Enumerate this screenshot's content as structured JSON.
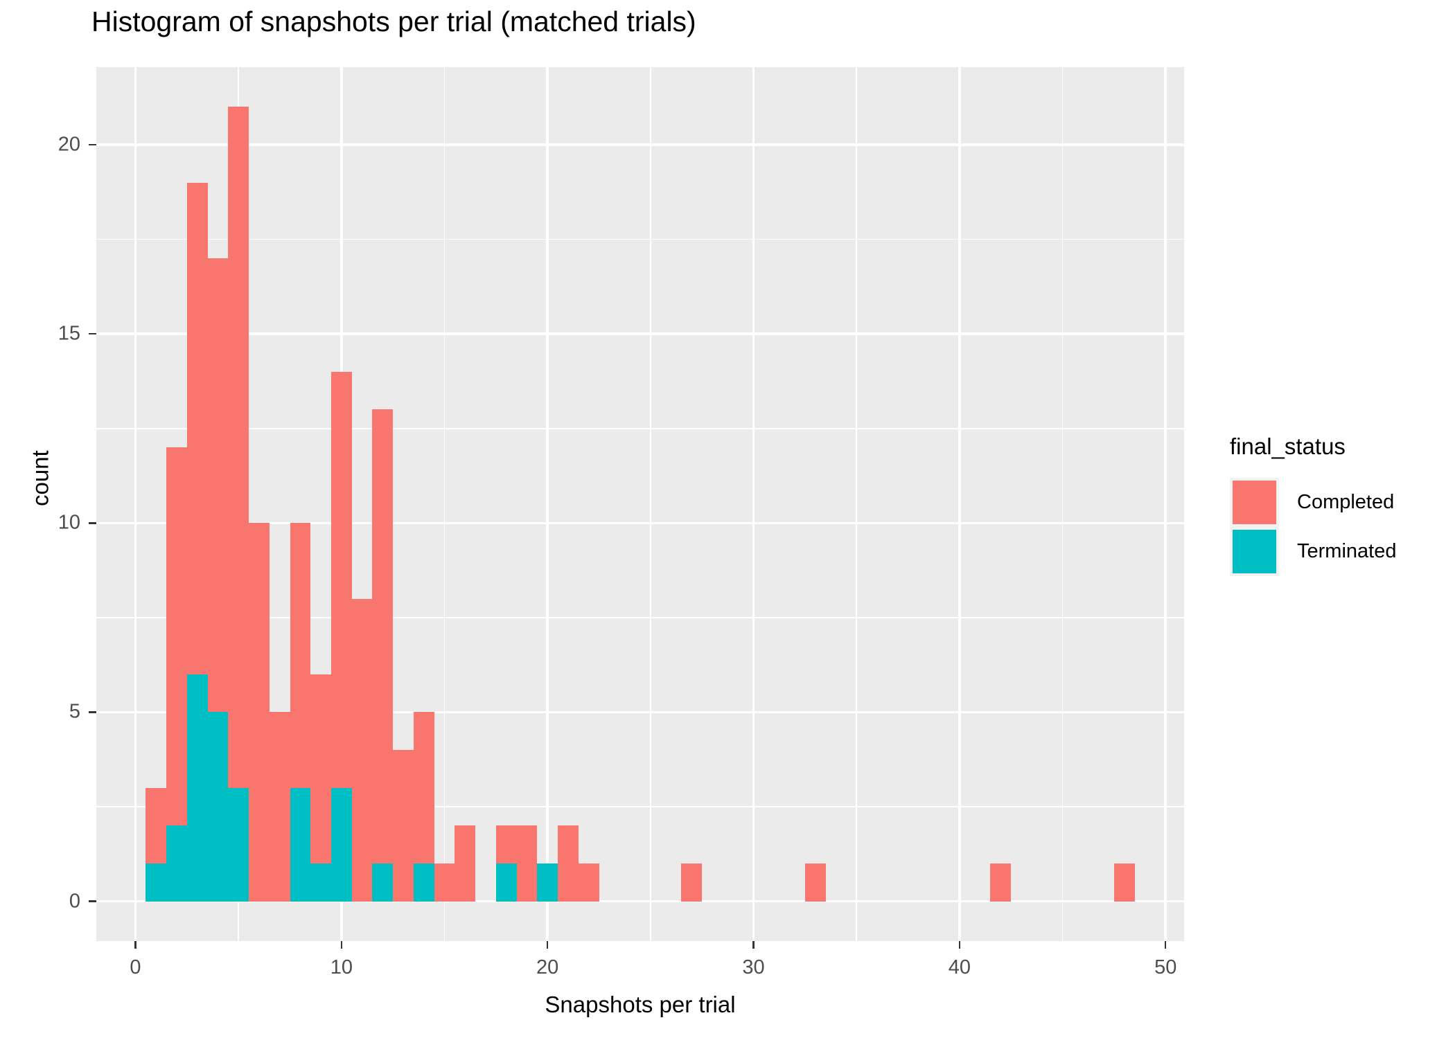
{
  "title": "Histogram of snapshots per trial (matched trials)",
  "x_axis": {
    "label": "Snapshots per trial",
    "ticks": [
      0,
      10,
      20,
      30,
      40,
      50
    ],
    "minor_ticks": [
      5,
      15,
      25,
      35,
      45
    ],
    "range": [
      -1.9,
      50.9
    ]
  },
  "y_axis": {
    "label": "count",
    "ticks": [
      0,
      5,
      10,
      15,
      20
    ],
    "minor_ticks": [
      2.5,
      7.5,
      12.5,
      17.5
    ],
    "range": [
      -1.05,
      22.05
    ]
  },
  "legend": {
    "title": "final_status",
    "entries": [
      {
        "label": "Completed",
        "color": "#F8766D"
      },
      {
        "label": "Terminated",
        "color": "#00BFC4"
      }
    ]
  },
  "colors": {
    "panel_bg": "#EBEBEB",
    "grid": "#FFFFFF",
    "tick_text": "#4D4D4D",
    "tick_mark": "#333333",
    "completed": "#F8766D",
    "terminated": "#00BFC4"
  },
  "chart_data": {
    "type": "bar",
    "subtype": "stacked-histogram",
    "title": "Histogram of snapshots per trial (matched trials)",
    "xlabel": "Snapshots per trial",
    "ylabel": "count",
    "binwidth": 1,
    "xlim": [
      -1.9,
      50.9
    ],
    "ylim": [
      -1.05,
      22.05
    ],
    "grid": true,
    "legend_position": "right",
    "legend_title": "final_status",
    "stack_order_bottom_to_top": [
      "Terminated",
      "Completed"
    ],
    "x": [
      1,
      2,
      3,
      4,
      5,
      6,
      7,
      8,
      9,
      10,
      11,
      12,
      13,
      14,
      15,
      16,
      17,
      18,
      19,
      20,
      21,
      22,
      27,
      33,
      42,
      48
    ],
    "series": [
      {
        "name": "Terminated",
        "color": "#00BFC4",
        "values": [
          1,
          2,
          6,
          5,
          3,
          0,
          0,
          3,
          1,
          3,
          0,
          1,
          0,
          1,
          0,
          0,
          0,
          1,
          0,
          1,
          0,
          0,
          0,
          0,
          0,
          0
        ]
      },
      {
        "name": "Completed",
        "color": "#F8766D",
        "values": [
          2,
          10,
          13,
          12,
          18,
          10,
          5,
          7,
          5,
          11,
          8,
          12,
          4,
          4,
          1,
          2,
          0,
          1,
          2,
          0,
          2,
          1,
          1,
          1,
          1,
          1
        ]
      }
    ],
    "totals": [
      3,
      12,
      19,
      17,
      21,
      10,
      5,
      10,
      6,
      14,
      8,
      13,
      4,
      5,
      1,
      2,
      0,
      2,
      2,
      1,
      2,
      1,
      1,
      1,
      1,
      1
    ]
  }
}
